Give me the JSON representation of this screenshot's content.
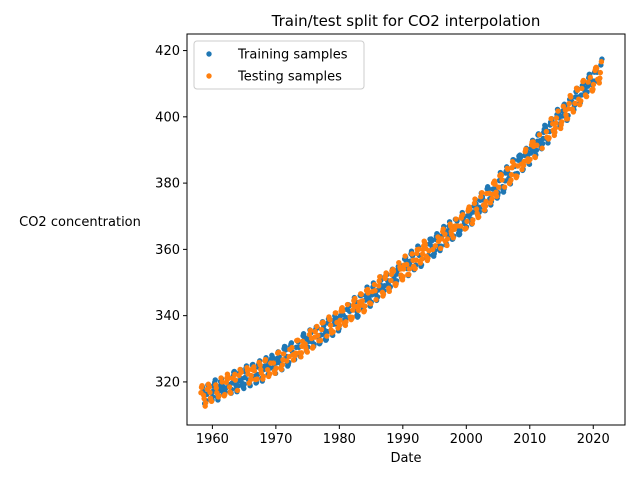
{
  "chart_data": {
    "type": "scatter",
    "title": "Train/test split for CO2 interpolation",
    "xlabel": "Date",
    "ylabel": "CO2 concentration",
    "xlim": [
      1956.0,
      2025.0
    ],
    "ylim": [
      307.0,
      425.0
    ],
    "xticks": [
      1960,
      1970,
      1980,
      1990,
      2000,
      2010,
      2020
    ],
    "xtick_labels": [
      "1960",
      "1970",
      "1980",
      "1990",
      "2000",
      "2010",
      "2020"
    ],
    "yticks": [
      320,
      340,
      360,
      380,
      400,
      420
    ],
    "ytick_labels": [
      "320",
      "340",
      "360",
      "380",
      "400",
      "420"
    ],
    "grid": false,
    "legend_position": "top-left",
    "trend": {
      "x_start": 1958.2,
      "x_end": 2021.4,
      "seasonal_amplitude": 3.0,
      "approx_values": [
        [
          1958.2,
          315.5
        ],
        [
          1970,
          325.5
        ],
        [
          1980,
          338.5
        ],
        [
          1990,
          354.0
        ],
        [
          2000,
          369.0
        ],
        [
          2010,
          389.0
        ],
        [
          2021.4,
          414.5
        ]
      ]
    },
    "series": [
      {
        "name": "Training samples",
        "color": "#1f77b4",
        "sample_fraction": 0.5
      },
      {
        "name": "Testing samples",
        "color": "#ff7f0e",
        "sample_fraction": 0.5
      }
    ]
  }
}
